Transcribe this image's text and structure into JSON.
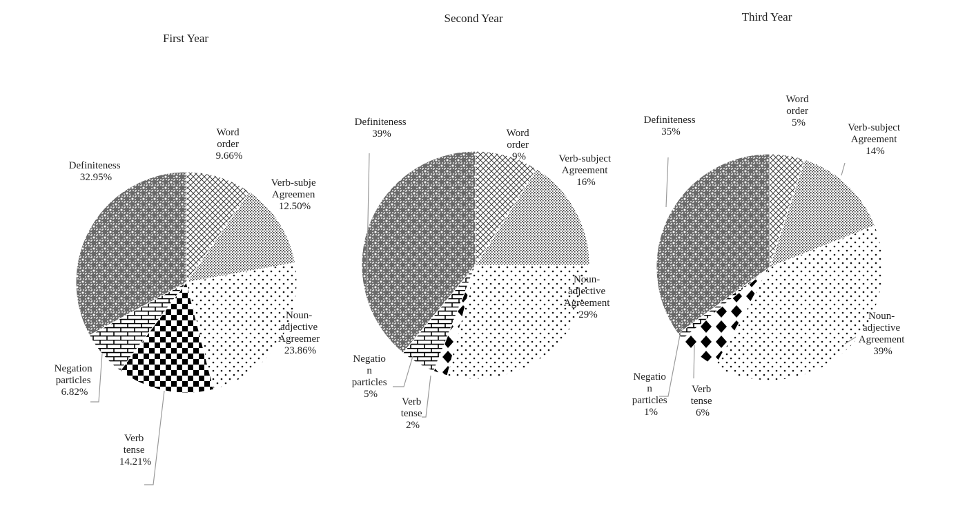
{
  "chart_data": [
    {
      "type": "pie",
      "title": "First Year",
      "categories": [
        "Word order",
        "Verb-subject Agreement",
        "Noun-adjective Agreement",
        "Verb tense",
        "Negation particles",
        "Definiteness"
      ],
      "values": [
        9.66,
        12.5,
        23.86,
        14.21,
        6.82,
        32.95
      ],
      "labels": [
        [
          "Word",
          "order",
          "9.66%"
        ],
        [
          "Verb-subje",
          "Agreemen",
          "12.50%"
        ],
        [
          "Noun-",
          "adjective",
          "Agreemer",
          "23.86%"
        ],
        [
          "Verb",
          "tense",
          "14.21%"
        ],
        [
          "Negation",
          "particles",
          "6.82%"
        ],
        [
          "Definiteness",
          "32.95%"
        ]
      ]
    },
    {
      "type": "pie",
      "title": "Second Year",
      "categories": [
        "Word order",
        "Verb-subject Agreement",
        "Noun-adjective Agreement",
        "Verb tense",
        "Negation particles",
        "Definiteness"
      ],
      "values": [
        9,
        16,
        29,
        2,
        5,
        39
      ],
      "labels": [
        [
          "Word",
          "order",
          "9%"
        ],
        [
          "Verb-subject",
          "Agreement",
          "16%"
        ],
        [
          "Noun-",
          "adjective",
          "Agreement",
          "29%"
        ],
        [
          "Verb",
          "tense",
          "2%"
        ],
        [
          "Negatio",
          "n",
          "particles",
          "5%"
        ],
        [
          "Definiteness",
          "39%"
        ]
      ]
    },
    {
      "type": "pie",
      "title": "Third Year",
      "categories": [
        "Word order",
        "Verb-subject Agreement",
        "Noun-adjective Agreement",
        "Verb tense",
        "Negation particles",
        "Definiteness"
      ],
      "values": [
        5,
        14,
        39,
        6,
        1,
        35
      ],
      "labels": [
        [
          "Word",
          "order",
          "5%"
        ],
        [
          "Verb-subject",
          "Agreement",
          "14%"
        ],
        [
          "Noun-",
          "adjective",
          "Agreement",
          "39%"
        ],
        [
          "Verb",
          "tense",
          "6%"
        ],
        [
          "Negatio",
          "n",
          "particles",
          "1%"
        ],
        [
          "Definiteness",
          "35%"
        ]
      ]
    }
  ]
}
